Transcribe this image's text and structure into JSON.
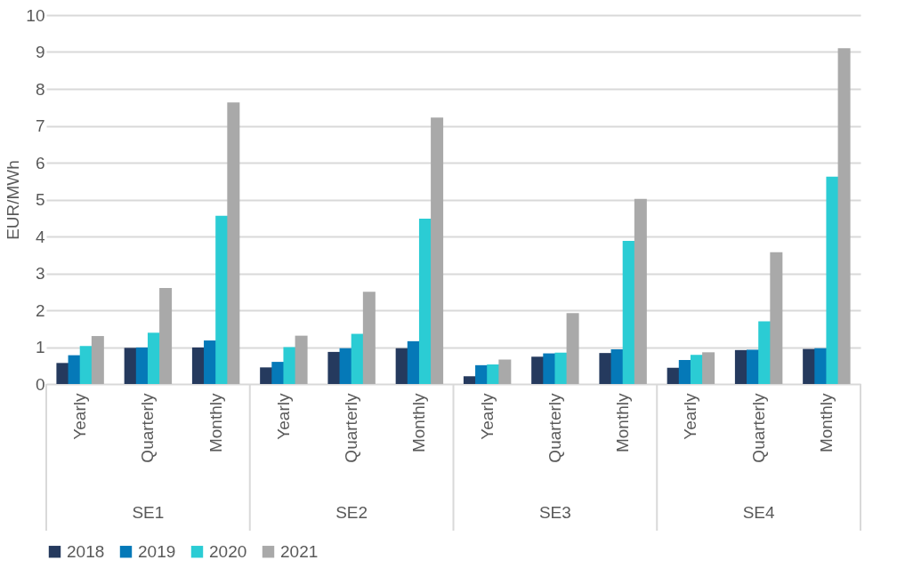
{
  "chart_data": {
    "type": "bar",
    "ylabel": "EUR/MWh",
    "categories": [
      "Yearly",
      "Quarterly",
      "Monthly",
      "Yearly",
      "Quarterly",
      "Monthly",
      "Yearly",
      "Quarterly",
      "Monthly",
      "Yearly",
      "Quarterly",
      "Monthly"
    ],
    "annotations": [
      "SE1",
      "SE2",
      "SE3",
      "SE4"
    ],
    "series": [
      {
        "name": "2018",
        "color": "#253a5e",
        "values": [
          0.57,
          0.98,
          0.99,
          0.45,
          0.87,
          0.97,
          0.21,
          0.74,
          0.84,
          0.44,
          0.92,
          0.95
        ]
      },
      {
        "name": "2019",
        "color": "#0579b8",
        "values": [
          0.78,
          0.99,
          1.18,
          0.6,
          0.97,
          1.16,
          0.51,
          0.83,
          0.94,
          0.65,
          0.93,
          0.97
        ]
      },
      {
        "name": "2020",
        "color": "#2bccd4",
        "values": [
          1.03,
          1.39,
          4.56,
          1.0,
          1.36,
          4.48,
          0.53,
          0.85,
          3.88,
          0.79,
          1.7,
          5.62
        ]
      },
      {
        "name": "2021",
        "color": "#a9a9a9",
        "values": [
          1.3,
          2.6,
          7.63,
          1.31,
          2.5,
          7.22,
          0.66,
          1.92,
          5.02,
          0.86,
          3.57,
          9.1
        ]
      }
    ],
    "ylim": [
      0,
      10
    ],
    "yticks": [
      0,
      1,
      2,
      3,
      4,
      5,
      6,
      7,
      8,
      9,
      10
    ],
    "grid": "y",
    "legend": "bottom"
  }
}
